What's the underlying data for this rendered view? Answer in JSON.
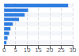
{
  "chart_data": {
    "type": "bar",
    "orientation": "horizontal",
    "categories": [
      null,
      null,
      null,
      null,
      null,
      null,
      null,
      null,
      null
    ],
    "values": [
      28.0,
      10.5,
      9.0,
      6.5,
      3.8,
      2.8,
      2.2,
      1.5,
      1.0
    ],
    "color": "#2f7de1",
    "xlim": [
      0,
      30
    ],
    "xticks": [
      0,
      5,
      10,
      15,
      20,
      25,
      30
    ],
    "grid": true,
    "tick_labels": "x"
  }
}
